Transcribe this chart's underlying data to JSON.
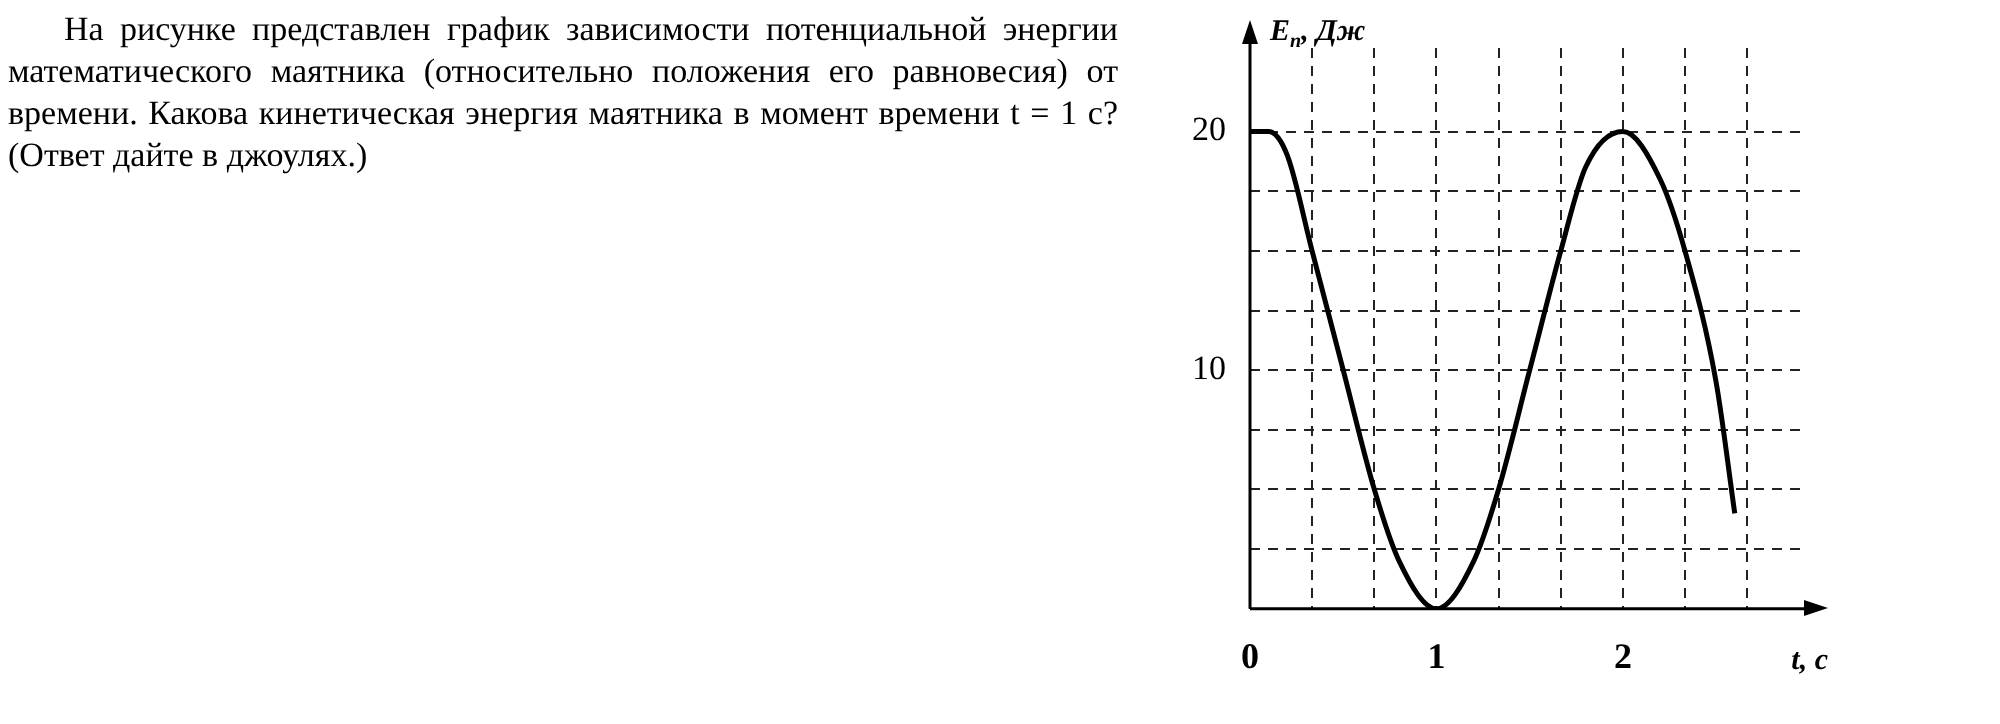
{
  "chart_data": {
    "type": "line",
    "xlabel": "t, с",
    "ylabel": "E$_{п}$, Дж",
    "annotations": [
      "На рисунке представлен график зависимости потенциальной энергии математического маятника (относительно положения его равновесия) от времени. Какова кинетическая энергия маятника в момент времени t = 1 с? (Ответ дайте в джоулях.)"
    ],
    "x": [
      0,
      0.1,
      0.2,
      0.333,
      0.5,
      0.667,
      0.8,
      1,
      1.2,
      1.333,
      1.5,
      1.667,
      1.8,
      2,
      2.2,
      2.333,
      2.5,
      2.6
    ],
    "series": [
      {
        "color": "#000000",
        "values": [
          20,
          20,
          19,
          15,
          10,
          5,
          2,
          0,
          2,
          5,
          10,
          15,
          18.5,
          20,
          18,
          15,
          9.5,
          4
        ]
      }
    ],
    "xlim": [
      0,
      2.95
    ],
    "ylim": [
      0,
      23.5
    ],
    "xticks": [
      0,
      {
        "value": 0.333,
        "label": null
      },
      {
        "value": 0.667,
        "label": null
      },
      1,
      {
        "value": 1.333,
        "label": null
      },
      {
        "value": 1.667,
        "label": null
      },
      2,
      {
        "value": 2.333,
        "label": null
      },
      {
        "value": 2.667,
        "label": null
      }
    ],
    "yticks": [
      {
        "value": 2.5,
        "label": null
      },
      {
        "value": 5,
        "label": null
      },
      {
        "value": 7.5,
        "label": null
      },
      10,
      {
        "value": 12.5,
        "label": null
      },
      {
        "value": 15,
        "label": null
      },
      {
        "value": 17.5,
        "label": null
      },
      20
    ],
    "grid": true,
    "legend": false,
    "marker": "none",
    "line_style": "solid"
  }
}
